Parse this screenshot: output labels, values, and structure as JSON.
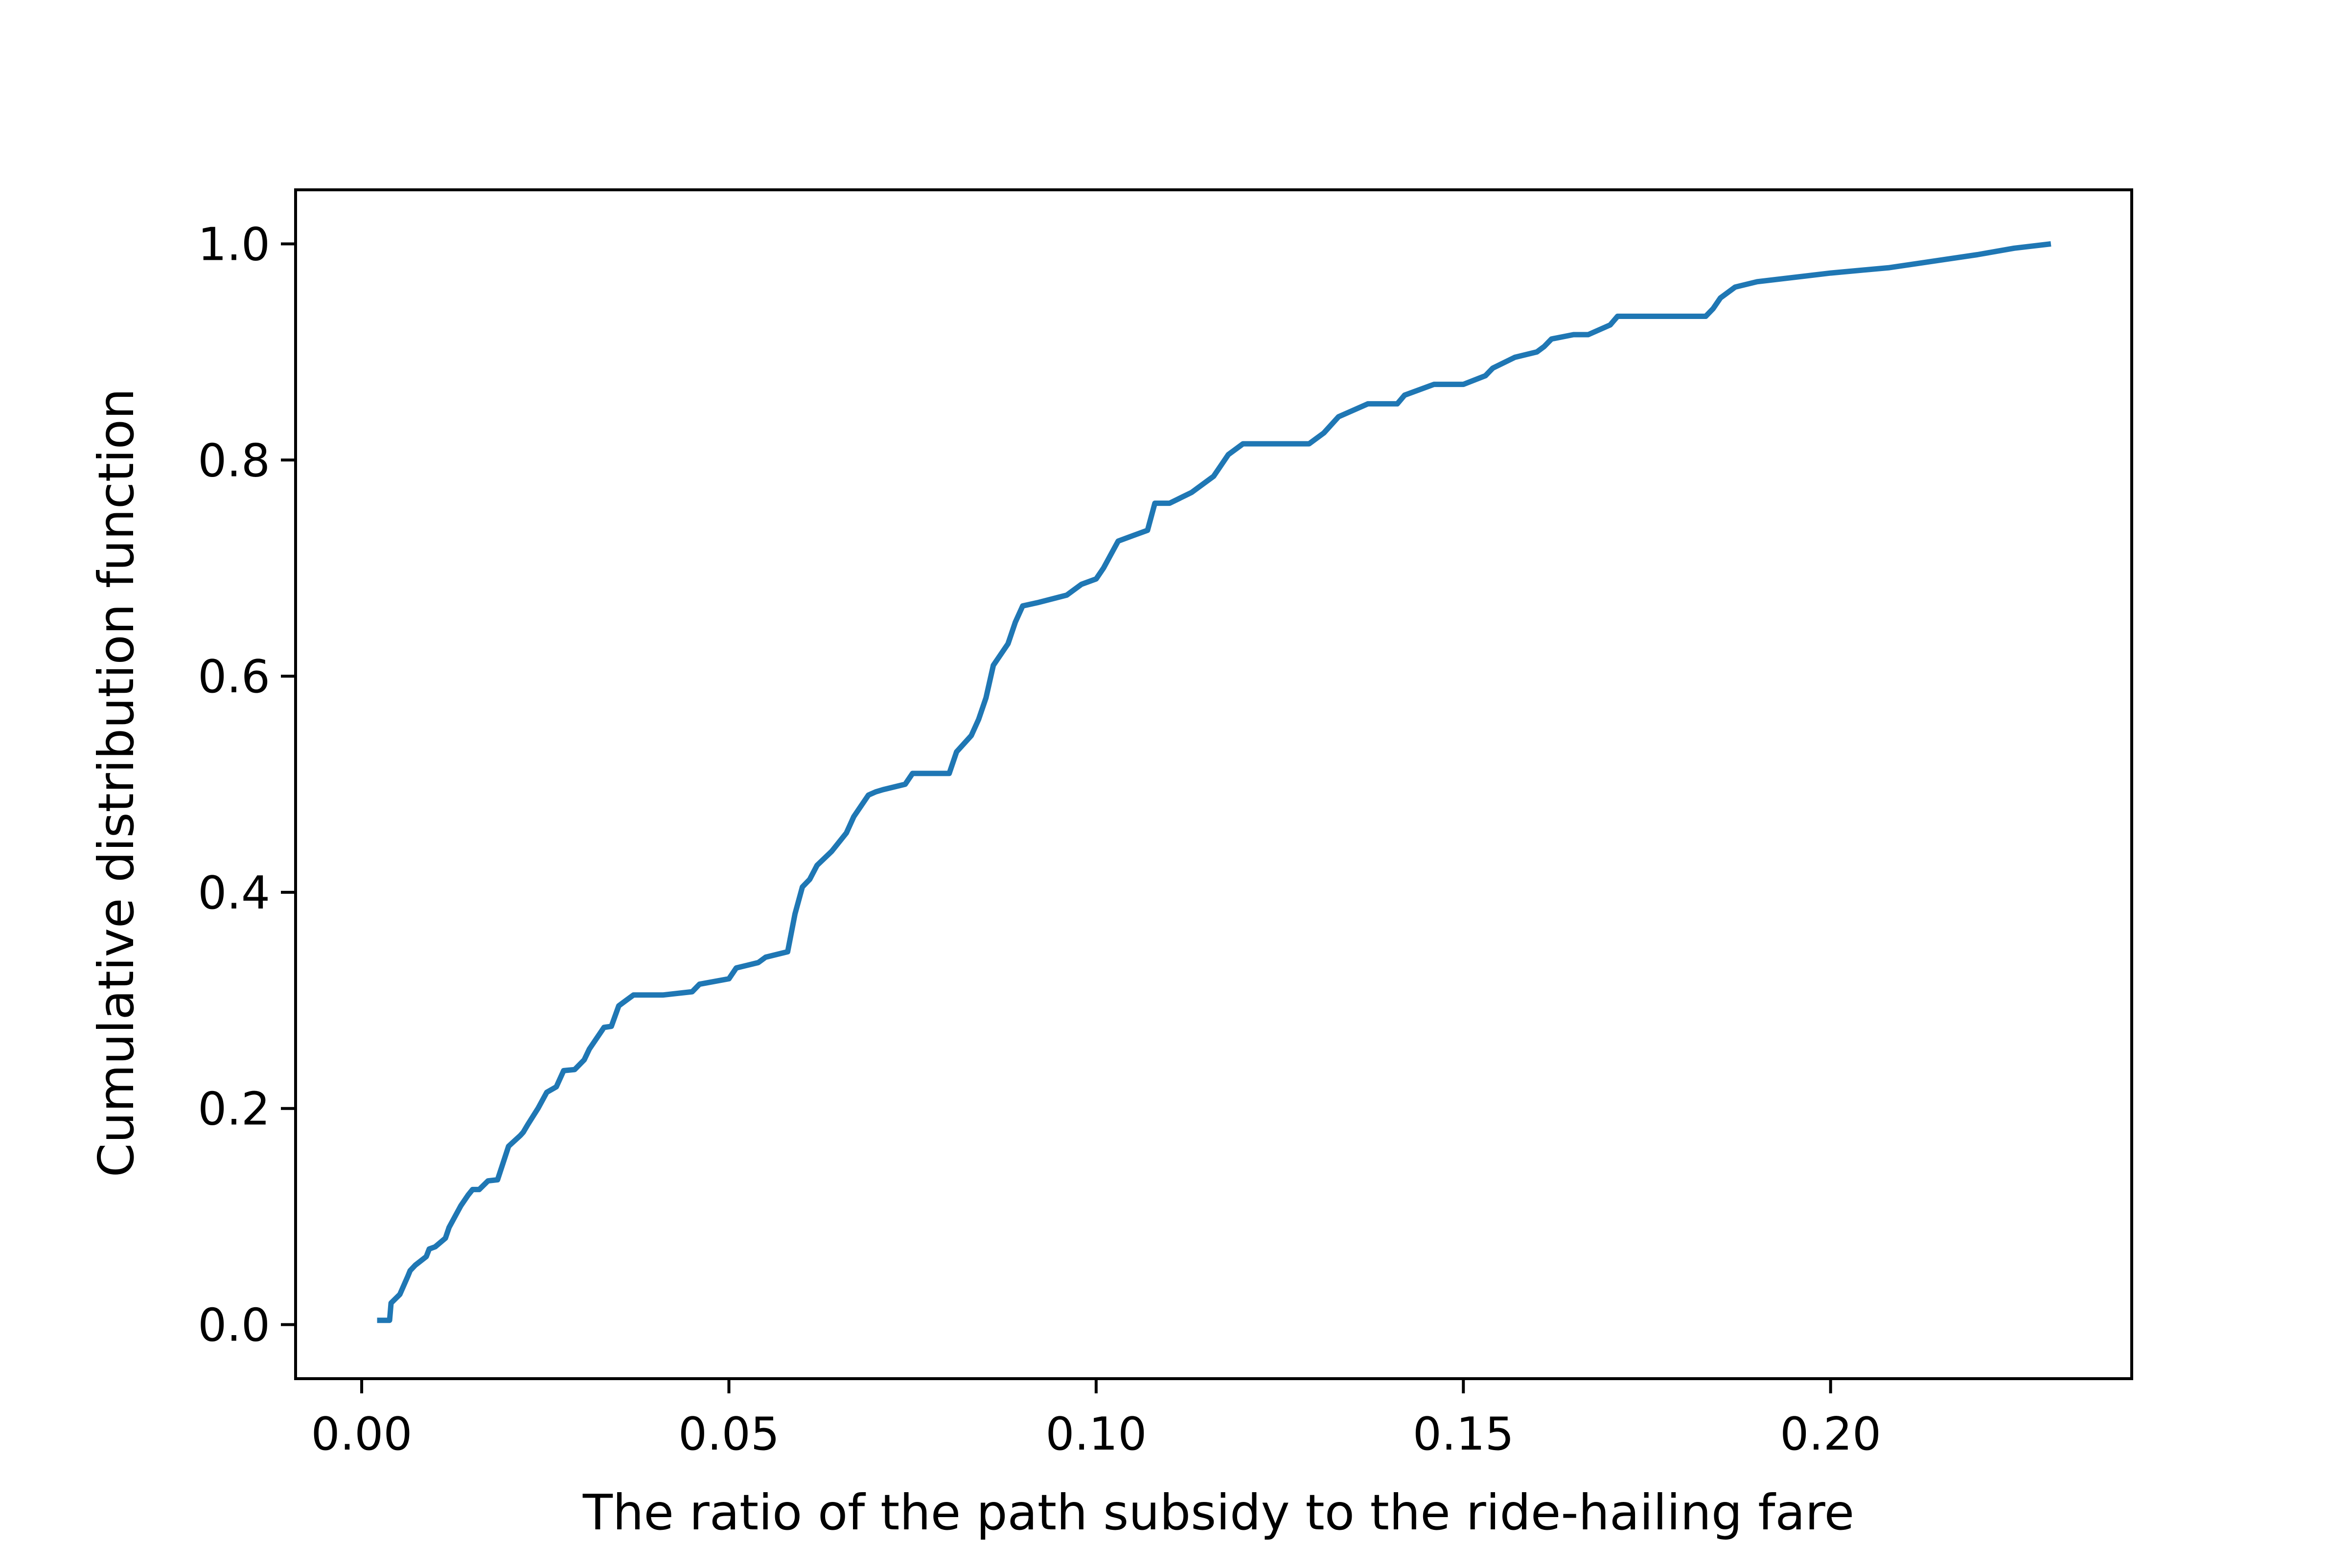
{
  "chart_data": {
    "type": "line",
    "title": "",
    "xlabel": "The ratio of the path subsidy to the ride-hailing fare",
    "ylabel": "Cumulative distribution function",
    "xlim": [
      -0.009,
      0.241
    ],
    "ylim": [
      -0.05,
      1.05
    ],
    "x_ticks": [
      0.0,
      0.05,
      0.1,
      0.15,
      0.2
    ],
    "x_tick_labels": [
      "0.00",
      "0.05",
      "0.10",
      "0.15",
      "0.20"
    ],
    "y_ticks": [
      0.0,
      0.2,
      0.4,
      0.6,
      0.8,
      1.0
    ],
    "y_tick_labels": [
      "0.0",
      "0.2",
      "0.4",
      "0.6",
      "0.8",
      "1.0"
    ],
    "grid": false,
    "legend": "none",
    "colors": {
      "line": "#1f77b4",
      "axes": "#000000",
      "background": "#ffffff"
    },
    "series": [
      {
        "x": [
          0.0021,
          0.0038,
          0.004,
          0.0052,
          0.0063,
          0.0066,
          0.0073,
          0.0088,
          0.0092,
          0.01,
          0.0114,
          0.0119,
          0.0135,
          0.0145,
          0.0151,
          0.016,
          0.0172,
          0.0185,
          0.02,
          0.0216,
          0.022,
          0.0226,
          0.024,
          0.0252,
          0.0265,
          0.0275,
          0.029,
          0.0303,
          0.031,
          0.033,
          0.034,
          0.035,
          0.036,
          0.037,
          0.038,
          0.039,
          0.04,
          0.041,
          0.045,
          0.046,
          0.05,
          0.051,
          0.054,
          0.055,
          0.058,
          0.059,
          0.06,
          0.061,
          0.062,
          0.064,
          0.066,
          0.067,
          0.069,
          0.07,
          0.071,
          0.074,
          0.075,
          0.08,
          0.081,
          0.083,
          0.084,
          0.085,
          0.086,
          0.088,
          0.089,
          0.09,
          0.092,
          0.096,
          0.098,
          0.1,
          0.101,
          0.103,
          0.105,
          0.107,
          0.108,
          0.11,
          0.113,
          0.116,
          0.117,
          0.118,
          0.12,
          0.123,
          0.129,
          0.131,
          0.133,
          0.137,
          0.141,
          0.142,
          0.146,
          0.15,
          0.153,
          0.154,
          0.157,
          0.16,
          0.161,
          0.162,
          0.165,
          0.167,
          0.17,
          0.171,
          0.183,
          0.184,
          0.185,
          0.187,
          0.19,
          0.2,
          0.208,
          0.215,
          0.22,
          0.225,
          0.23
        ],
        "y": [
          0.004,
          0.004,
          0.02,
          0.028,
          0.045,
          0.05,
          0.055,
          0.063,
          0.07,
          0.072,
          0.08,
          0.09,
          0.11,
          0.12,
          0.125,
          0.125,
          0.133,
          0.134,
          0.165,
          0.175,
          0.178,
          0.185,
          0.2,
          0.215,
          0.22,
          0.235,
          0.236,
          0.245,
          0.255,
          0.275,
          0.276,
          0.295,
          0.3,
          0.305,
          0.305,
          0.305,
          0.305,
          0.305,
          0.308,
          0.315,
          0.32,
          0.33,
          0.335,
          0.34,
          0.345,
          0.38,
          0.405,
          0.412,
          0.425,
          0.438,
          0.455,
          0.47,
          0.49,
          0.493,
          0.495,
          0.5,
          0.51,
          0.51,
          0.53,
          0.545,
          0.56,
          0.58,
          0.61,
          0.63,
          0.65,
          0.665,
          0.668,
          0.675,
          0.685,
          0.69,
          0.7,
          0.725,
          0.73,
          0.735,
          0.76,
          0.76,
          0.77,
          0.785,
          0.795,
          0.805,
          0.815,
          0.815,
          0.815,
          0.825,
          0.84,
          0.852,
          0.852,
          0.86,
          0.87,
          0.87,
          0.878,
          0.885,
          0.895,
          0.9,
          0.905,
          0.912,
          0.916,
          0.916,
          0.925,
          0.933,
          0.933,
          0.94,
          0.95,
          0.96,
          0.965,
          0.973,
          0.978,
          0.985,
          0.99,
          0.996,
          1.0
        ]
      }
    ]
  }
}
